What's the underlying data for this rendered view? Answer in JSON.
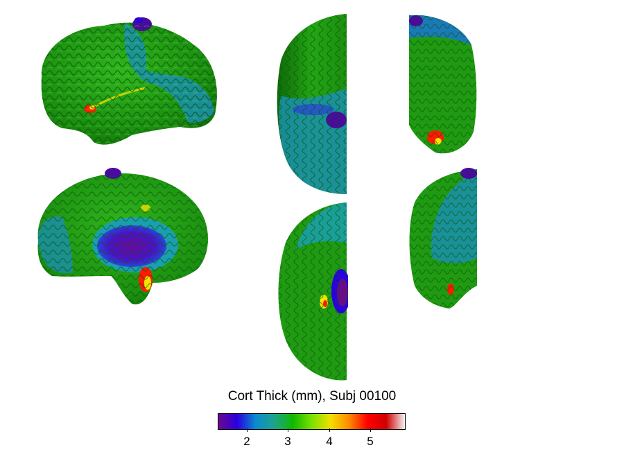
{
  "figure": {
    "title": "Cort Thick (mm), Subj 00100",
    "views": [
      {
        "id": "lateral"
      },
      {
        "id": "medial"
      },
      {
        "id": "superior"
      },
      {
        "id": "inferior"
      },
      {
        "id": "anterior"
      },
      {
        "id": "posterior"
      }
    ]
  },
  "colorbar": {
    "min": 1.3,
    "max": 5.85,
    "ticks": [
      {
        "value": 2,
        "label": "2"
      },
      {
        "value": 3,
        "label": "3"
      },
      {
        "value": 4,
        "label": "4"
      },
      {
        "value": 5,
        "label": "5"
      }
    ],
    "colors": [
      "#6a0a8c",
      "#2a00e0",
      "#0a8ccf",
      "#1fa38a",
      "#10b800",
      "#7be000",
      "#f0e000",
      "#ff8a00",
      "#ff0000",
      "#d00000",
      "#f4f4f4"
    ]
  },
  "palette": {
    "cortex": "#1f9a12",
    "cortex_dark": "#0f5f08",
    "thin_blue": "#1a7ab8",
    "teal": "#1e9a86",
    "purple": "#4a0aa0",
    "hot_red": "#ff1a00",
    "hot_yellow": "#f2e600"
  }
}
